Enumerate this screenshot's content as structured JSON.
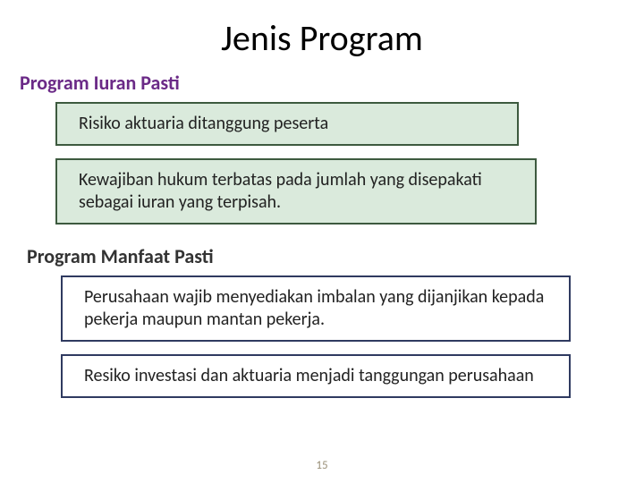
{
  "title": "Jenis Program",
  "section1": {
    "heading": "Program Iuran Pasti",
    "heading_color": "#6b2a87",
    "box1": "Risiko aktuaria ditanggung peserta",
    "box2": "Kewajiban hukum terbatas pada jumlah yang disepakati sebagai iuran yang terpisah.",
    "box_bg": "#daeadc",
    "box_border": "#3d5a3f"
  },
  "section2": {
    "heading": "Program Manfaat Pasti",
    "heading_color": "#333333",
    "box1": "Perusahaan wajib menyediakan imbalan yang dijanjikan kepada pekerja maupun mantan pekerja.",
    "box2": "Resiko investasi dan aktuaria menjadi tanggungan perusahaan",
    "box_bg": "#ffffff",
    "box_border": "#2f3a60"
  },
  "page_number": "15",
  "background_color": "#ffffff",
  "title_fontsize": 40,
  "heading_fontsize": 22,
  "body_fontsize": 20
}
